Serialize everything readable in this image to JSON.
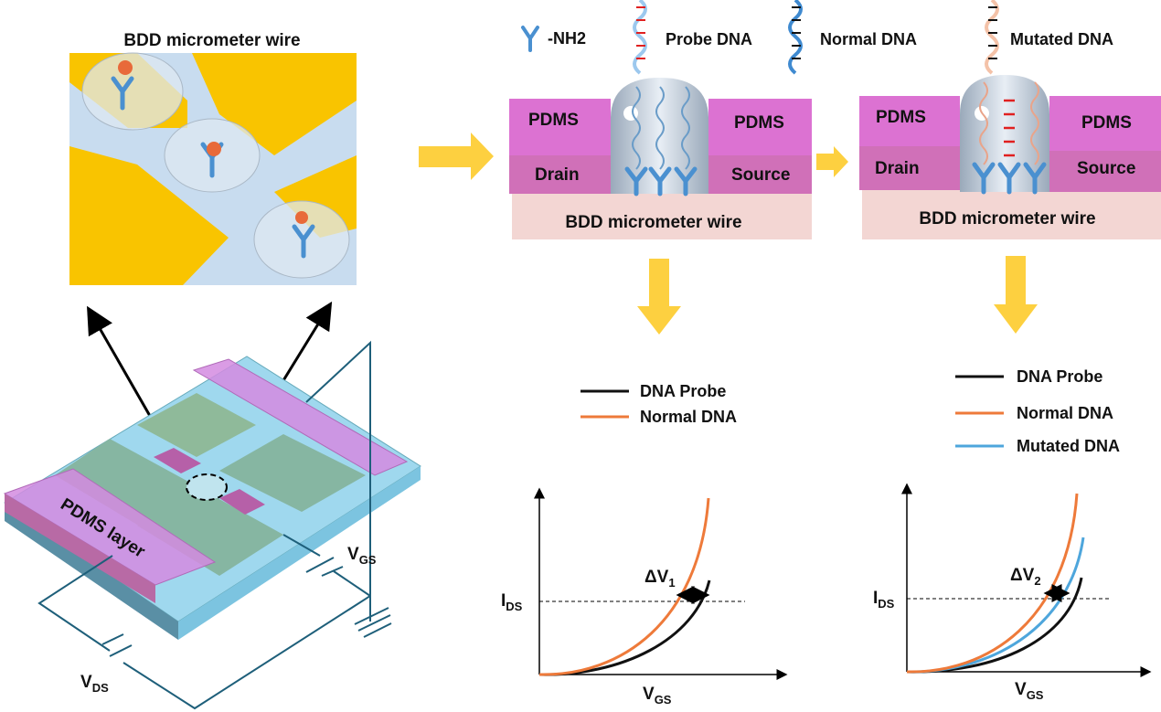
{
  "inset": {
    "title": "BDD micrometer wire"
  },
  "device": {
    "pdms_label": "PDMS layer",
    "vgs": {
      "main": "V",
      "sub": "GS"
    },
    "vds": {
      "main": "V",
      "sub": "DS"
    }
  },
  "legend_top": {
    "nh2": "-NH2",
    "probe": "Probe DNA",
    "normal": "Normal DNA",
    "mutated": "Mutated DNA"
  },
  "schematic1": {
    "pdms_left": "PDMS",
    "pdms_right": "PDMS",
    "drain": "Drain",
    "source": "Source",
    "wire": "BDD micrometer wire"
  },
  "schematic2": {
    "pdms_left": "PDMS",
    "pdms_right": "PDMS",
    "drain": "Drain",
    "source": "Source",
    "wire": "BDD micrometer wire"
  },
  "plot1": {
    "legend": [
      "DNA Probe",
      "Normal DNA"
    ],
    "ylabel": {
      "main": "I",
      "sub": "DS"
    },
    "xlabel": {
      "main": "V",
      "sub": "GS"
    },
    "delta": {
      "main": "ΔV",
      "sub": "1"
    }
  },
  "plot2": {
    "legend": [
      "DNA Probe",
      "Normal DNA",
      "Mutated DNA"
    ],
    "ylabel": {
      "main": "I",
      "sub": "DS"
    },
    "xlabel": {
      "main": "V",
      "sub": "GS"
    },
    "delta": {
      "main": "ΔV",
      "sub": "2"
    }
  },
  "colors": {
    "probe_curve": "#111111",
    "normal_curve": "#ee7a3a",
    "mutated_curve": "#4ea6dc",
    "arrow": "#fdd040",
    "pdms": "#d779cc",
    "electrode": "#f9c400",
    "wire": "#f3d6d3",
    "circuit": "#1e5f7a"
  }
}
